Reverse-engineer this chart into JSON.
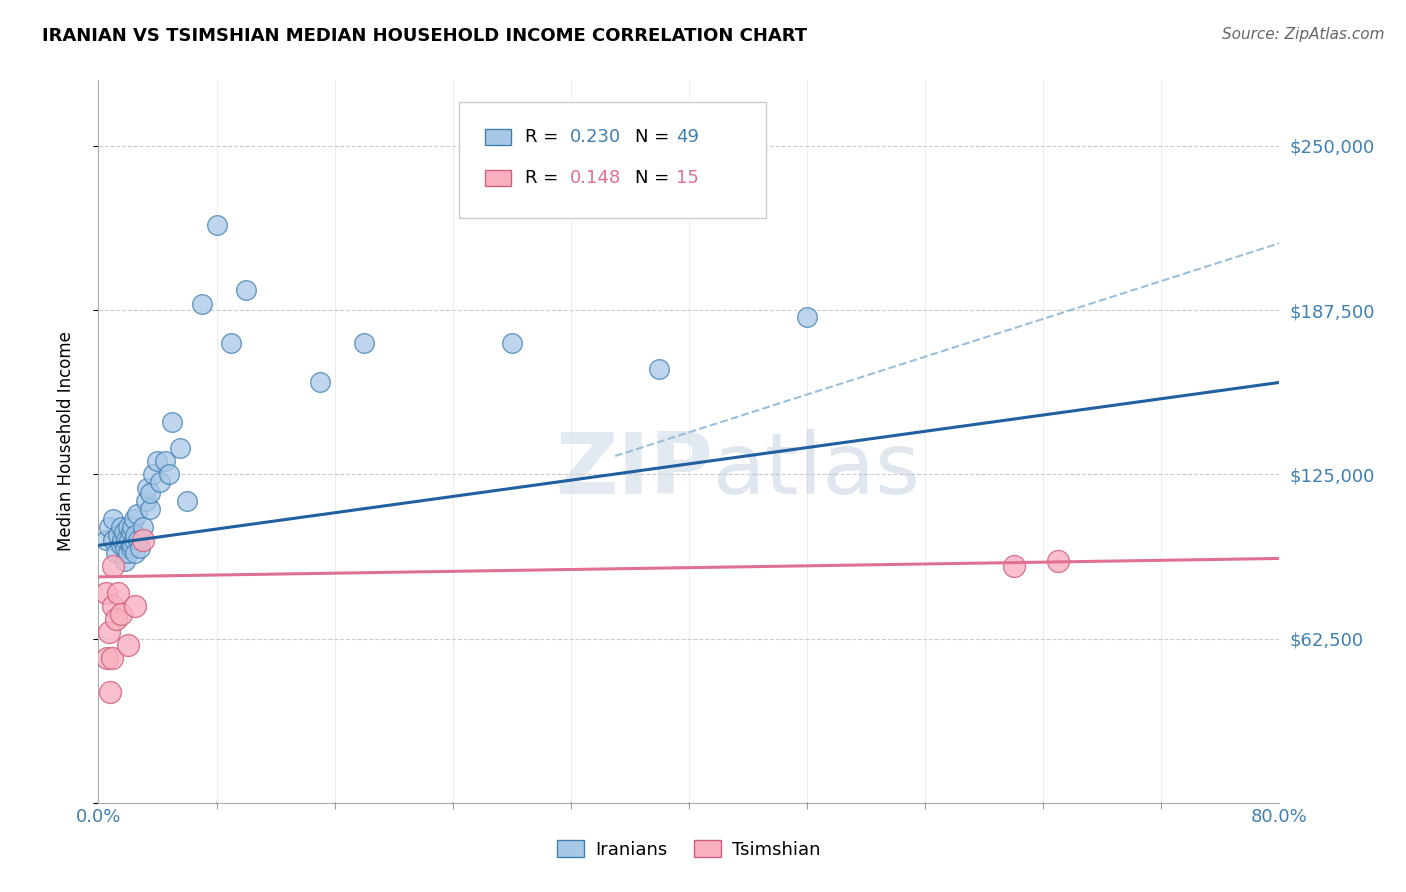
{
  "title": "IRANIAN VS TSIMSHIAN MEDIAN HOUSEHOLD INCOME CORRELATION CHART",
  "source": "Source: ZipAtlas.com",
  "ylabel": "Median Household Income",
  "xlim": [
    0.0,
    0.8
  ],
  "ylim": [
    0,
    275000
  ],
  "yticks": [
    0,
    62500,
    125000,
    187500,
    250000
  ],
  "ytick_labels": [
    "",
    "$62,500",
    "$125,000",
    "$187,500",
    "$250,000"
  ],
  "xtick_labels_ends": [
    "0.0%",
    "80.0%"
  ],
  "xticks_ends": [
    0.0,
    0.8
  ],
  "xticks_minor": [
    0.08,
    0.16,
    0.24,
    0.32,
    0.4,
    0.48,
    0.56,
    0.64,
    0.72
  ],
  "iranian_R": 0.23,
  "iranian_N": 49,
  "tsimshian_R": 0.148,
  "tsimshian_N": 15,
  "blue_fill": "#a8c8e8",
  "blue_edge": "#4080b0",
  "blue_line": "#2060a0",
  "blue_dash": "#90b8d8",
  "pink_fill": "#f8b0c0",
  "pink_edge": "#d06080",
  "pink_line": "#e07090",
  "label_color": "#4080b0",
  "grid_color": "#cccccc",
  "watermark_zip": "#d0dce8",
  "watermark_atlas": "#c0ccd8",
  "iranian_scatter_x": [
    0.005,
    0.007,
    0.01,
    0.01,
    0.012,
    0.013,
    0.015,
    0.015,
    0.016,
    0.017,
    0.018,
    0.018,
    0.019,
    0.02,
    0.02,
    0.021,
    0.022,
    0.022,
    0.023,
    0.023,
    0.024,
    0.024,
    0.025,
    0.025,
    0.026,
    0.027,
    0.028,
    0.03,
    0.032,
    0.033,
    0.035,
    0.035,
    0.037,
    0.04,
    0.042,
    0.045,
    0.048,
    0.05,
    0.055,
    0.06,
    0.07,
    0.08,
    0.09,
    0.1,
    0.15,
    0.18,
    0.28,
    0.38,
    0.48
  ],
  "iranian_scatter_y": [
    100000,
    105000,
    100000,
    108000,
    95000,
    102000,
    98000,
    105000,
    100000,
    103000,
    92000,
    97000,
    100000,
    95000,
    105000,
    100000,
    97000,
    103000,
    98000,
    105000,
    100000,
    108000,
    95000,
    102000,
    110000,
    100000,
    97000,
    105000,
    115000,
    120000,
    112000,
    118000,
    125000,
    130000,
    122000,
    130000,
    125000,
    145000,
    135000,
    115000,
    190000,
    220000,
    175000,
    195000,
    160000,
    175000,
    175000,
    165000,
    185000
  ],
  "tsimshian_scatter_x": [
    0.005,
    0.006,
    0.007,
    0.008,
    0.009,
    0.01,
    0.01,
    0.012,
    0.013,
    0.015,
    0.02,
    0.025,
    0.03,
    0.62,
    0.65
  ],
  "tsimshian_scatter_y": [
    80000,
    55000,
    65000,
    42000,
    55000,
    75000,
    90000,
    70000,
    80000,
    72000,
    60000,
    75000,
    100000,
    90000,
    92000
  ],
  "iranian_line_x0": 0.0,
  "iranian_line_y0": 98000,
  "iranian_line_x1": 0.8,
  "iranian_line_y1": 160000,
  "tsimshian_line_x0": 0.0,
  "tsimshian_line_y0": 86000,
  "tsimshian_line_x1": 0.8,
  "tsimshian_line_y1": 93000,
  "dash_line_x0": 0.35,
  "dash_line_y0": 132000,
  "dash_line_x1": 0.8,
  "dash_line_y1": 213000
}
